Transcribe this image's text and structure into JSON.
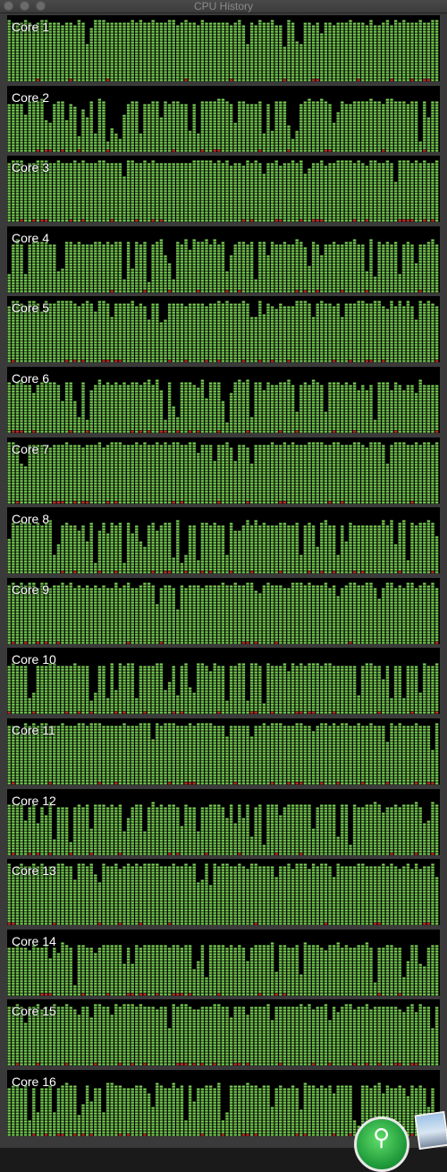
{
  "window": {
    "title": "CPU History"
  },
  "colors": {
    "active": "#7ed957",
    "active_outline": "#3f7a24",
    "idle": "#000000",
    "system_marker": "#d0312d",
    "separator": "#3a3a3a"
  },
  "cores": [
    {
      "label": "Core 1",
      "usage_percent": 92
    },
    {
      "label": "Core 2",
      "usage_percent": 78
    },
    {
      "label": "Core 3",
      "usage_percent": 93
    },
    {
      "label": "Core 4",
      "usage_percent": 78
    },
    {
      "label": "Core 5",
      "usage_percent": 92
    },
    {
      "label": "Core 6",
      "usage_percent": 78
    },
    {
      "label": "Core 7",
      "usage_percent": 93
    },
    {
      "label": "Core 8",
      "usage_percent": 78
    },
    {
      "label": "Core 9",
      "usage_percent": 92
    },
    {
      "label": "Core 10",
      "usage_percent": 77
    },
    {
      "label": "Core 11",
      "usage_percent": 94
    },
    {
      "label": "Core 12",
      "usage_percent": 78
    },
    {
      "label": "Core 13",
      "usage_percent": 93
    },
    {
      "label": "Core 14",
      "usage_percent": 78
    },
    {
      "label": "Core 15",
      "usage_percent": 93
    },
    {
      "label": "Core 16",
      "usage_percent": 78
    }
  ],
  "dock": {
    "activity_monitor_icon": "activity-monitor-icon",
    "photo_thumbnail": "photo-icon"
  }
}
